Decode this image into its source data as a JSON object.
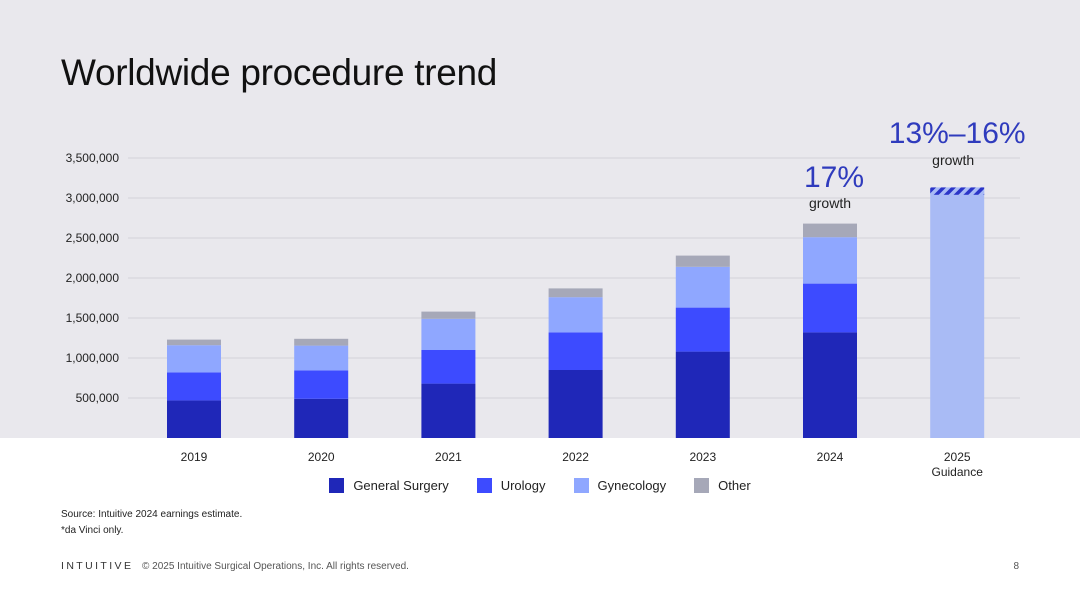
{
  "slide": {
    "title": "Worldwide procedure trend",
    "sources": [
      "Source: Intuitive 2024 earnings estimate.",
      "*da Vinci only."
    ],
    "logo_text": "INTUITIVE",
    "copyright": "© 2025 Intuitive Surgical Operations, Inc. All rights reserved.",
    "page_number": "8"
  },
  "chart_data": {
    "type": "bar",
    "stacked": true,
    "title": "Worldwide procedure trend",
    "xlabel": "",
    "ylabel": "",
    "ylim": [
      0,
      3500000
    ],
    "yticks": [
      500000,
      1000000,
      1500000,
      2000000,
      2500000,
      3000000,
      3500000
    ],
    "ytick_labels": [
      "500,000",
      "1,000,000",
      "1,500,000",
      "2,000,000",
      "2,500,000",
      "3,000,000",
      "3,500,000"
    ],
    "grid": true,
    "legend_position": "bottom",
    "categories": [
      "2019",
      "2020",
      "2021",
      "2022",
      "2023",
      "2024",
      "2025"
    ],
    "category_sublabels": [
      "",
      "",
      "",
      "",
      "",
      "",
      "Guidance"
    ],
    "series": [
      {
        "name": "General Surgery",
        "color": "#1f27b8",
        "values": [
          470000,
          490000,
          680000,
          850000,
          1080000,
          1320000,
          null
        ]
      },
      {
        "name": "Urology",
        "color": "#3d4bff",
        "values": [
          350000,
          355000,
          420000,
          470000,
          550000,
          610000,
          null
        ]
      },
      {
        "name": "Gynecology",
        "color": "#8fa7ff",
        "values": [
          340000,
          310000,
          390000,
          440000,
          510000,
          580000,
          null
        ]
      },
      {
        "name": "Other",
        "color": "#a6a8b8",
        "values": [
          70000,
          85000,
          90000,
          110000,
          140000,
          170000,
          null
        ]
      }
    ],
    "guidance": {
      "category": "2025",
      "color": "#a9bbf5",
      "hatch_color": "#2b35c8",
      "range_low": 3040000,
      "range_high": 3120000,
      "label": "13%–16%",
      "sublabel": "growth"
    },
    "annotations": [
      {
        "category": "2024",
        "text": "17%",
        "subtext": "growth"
      }
    ],
    "accent_text_color": "#2f3bbd"
  }
}
